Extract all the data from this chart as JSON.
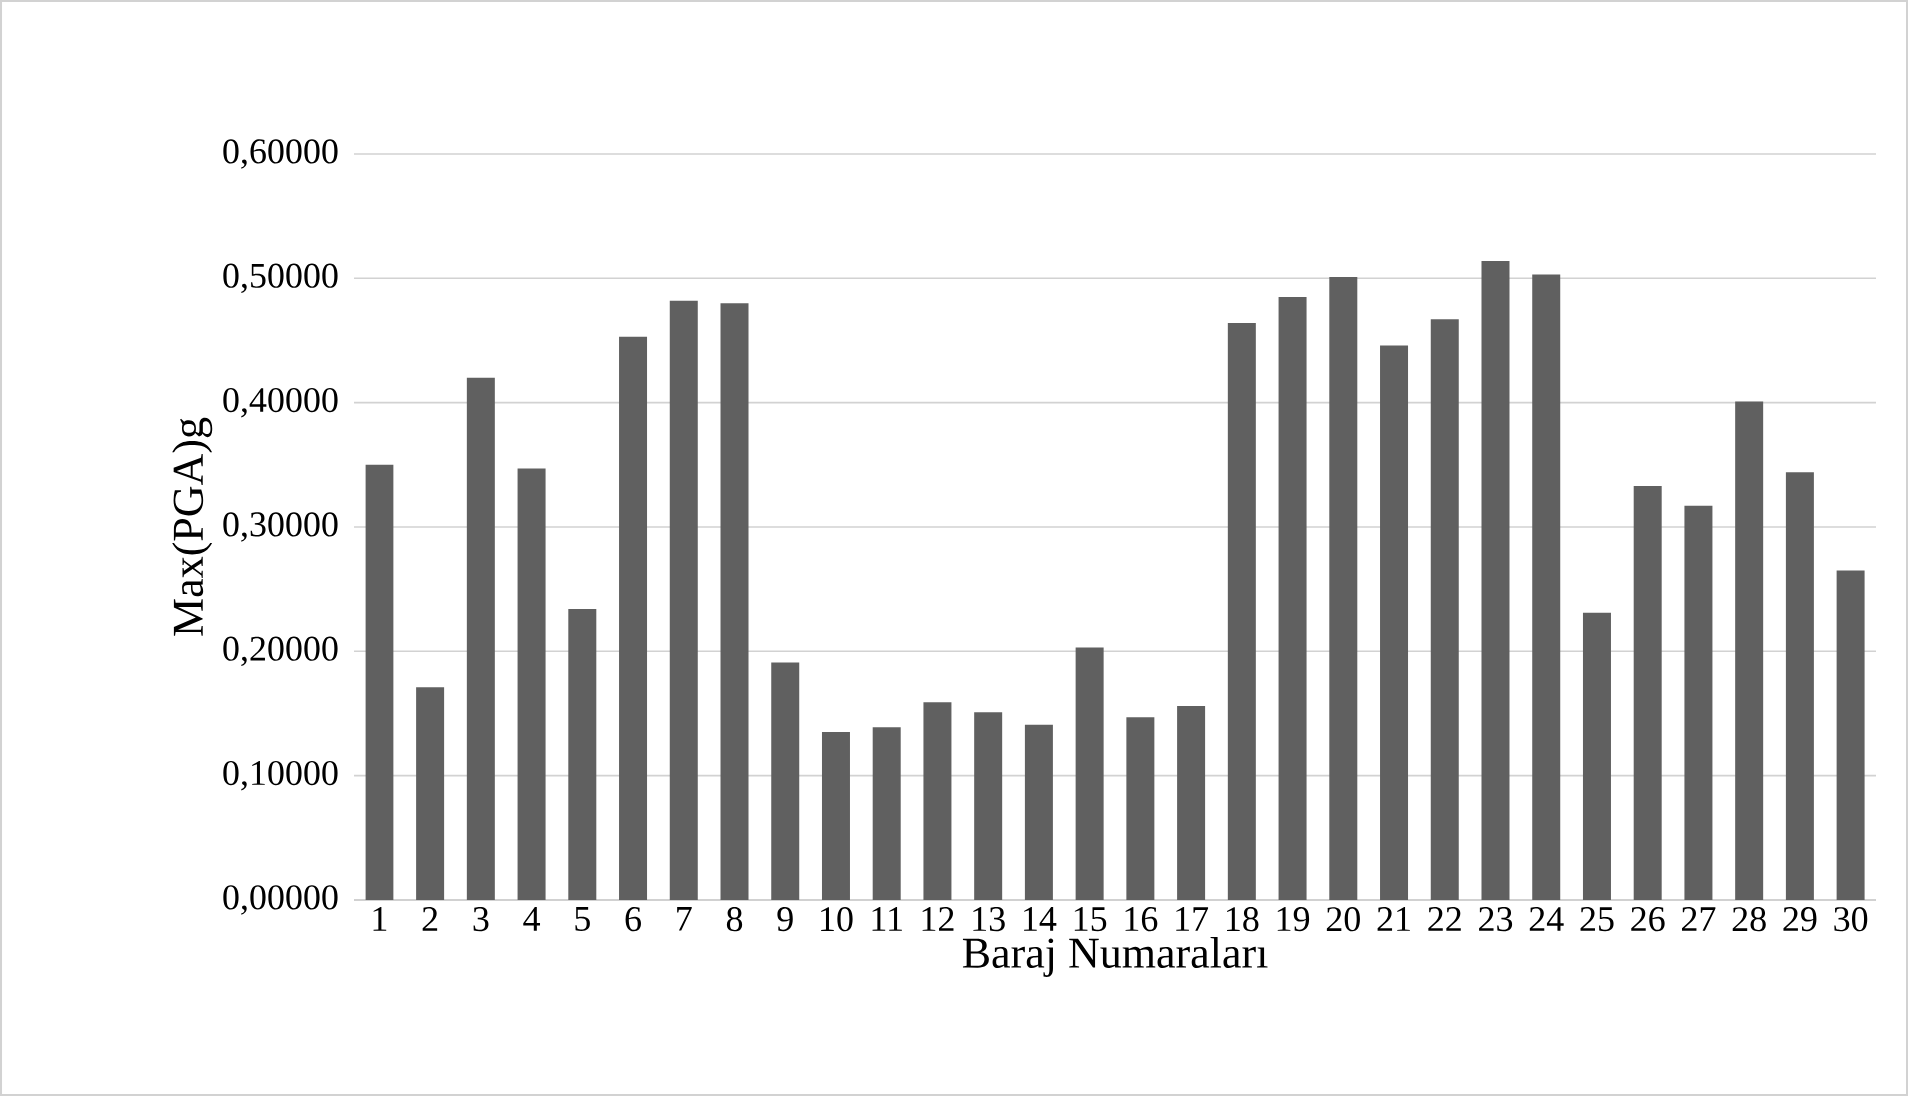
{
  "chart_data": {
    "type": "bar",
    "xlabel": "Baraj Numaraları",
    "ylabel": "Max(PGA)g",
    "categories": [
      "1",
      "2",
      "3",
      "4",
      "5",
      "6",
      "7",
      "8",
      "9",
      "10",
      "11",
      "12",
      "13",
      "14",
      "15",
      "16",
      "17",
      "18",
      "19",
      "20",
      "21",
      "22",
      "23",
      "24",
      "25",
      "26",
      "27",
      "28",
      "29",
      "30"
    ],
    "values": [
      0.35,
      0.171,
      0.42,
      0.347,
      0.234,
      0.453,
      0.482,
      0.48,
      0.191,
      0.135,
      0.139,
      0.159,
      0.151,
      0.141,
      0.203,
      0.147,
      0.156,
      0.464,
      0.485,
      0.501,
      0.446,
      0.467,
      0.514,
      0.503,
      0.231,
      0.333,
      0.317,
      0.401,
      0.344,
      0.265
    ],
    "color": "#606060",
    "ylim": [
      0,
      0.6
    ],
    "yticks": [
      {
        "value": 0,
        "label": "0,00000"
      },
      {
        "value": 0.1,
        "label": "0,10000"
      },
      {
        "value": 0.2,
        "label": "0,20000"
      },
      {
        "value": 0.3,
        "label": "0,30000"
      },
      {
        "value": 0.4,
        "label": "0,40000"
      },
      {
        "value": 0.5,
        "label": "0,50000"
      },
      {
        "value": 0.6,
        "label": "0,60000"
      }
    ],
    "grid": "y"
  }
}
